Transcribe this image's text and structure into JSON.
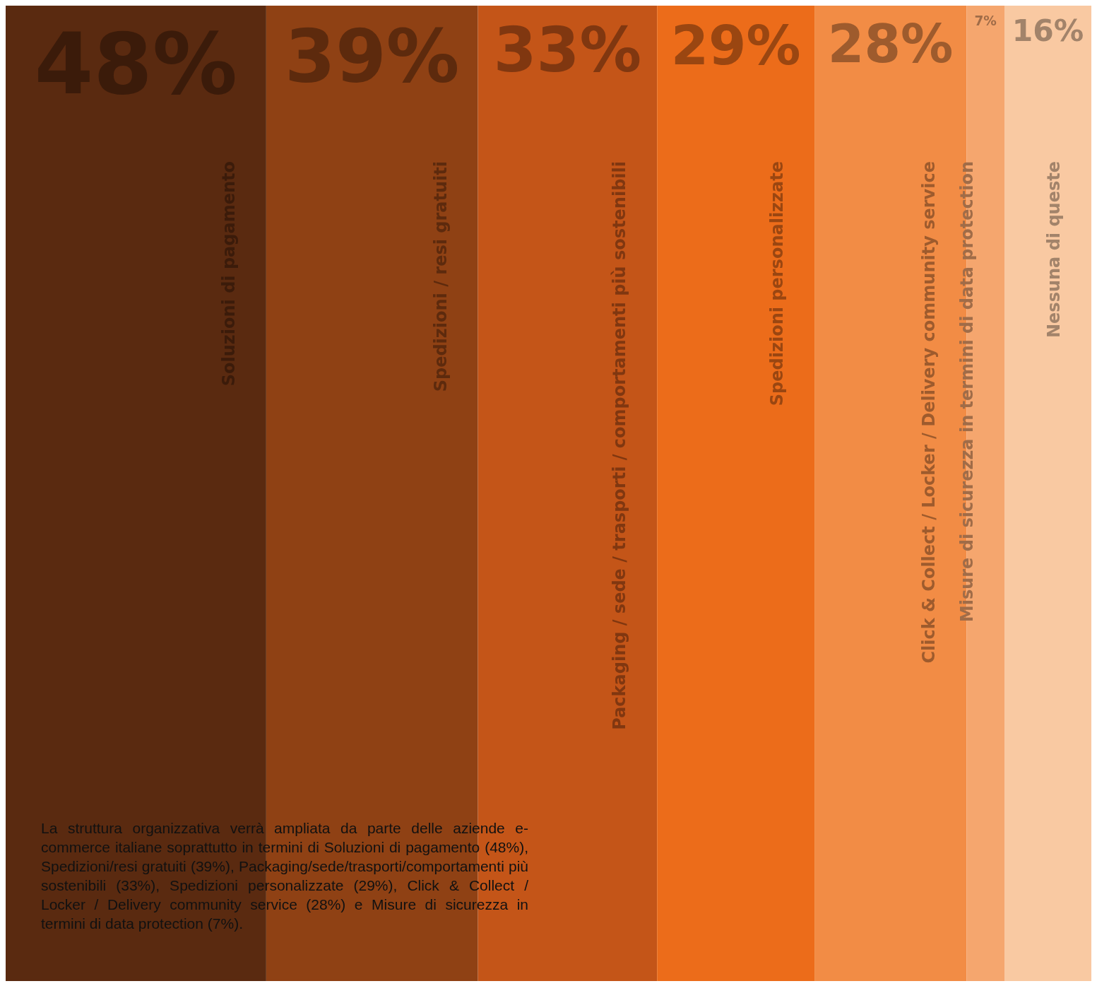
{
  "chart_data": {
    "type": "other",
    "categories": [
      "Soluzioni di pagamento",
      "Spedizioni / resi gratuiti",
      "Packaging / sede / trasporti / comportamenti più sostenibili",
      "Spedizioni personalizzate",
      "Click & Collect / Locker / Delivery community service",
      "Misure di sicurezza in termini di data protection",
      "Nessuna di queste"
    ],
    "values": [
      48,
      39,
      33,
      29,
      28,
      7,
      16
    ],
    "value_labels": [
      "48%",
      "39%",
      "33%",
      "29%",
      "28%",
      "7%",
      "16%"
    ],
    "colors": [
      "#5a2a10",
      "#8f4114",
      "#c45518",
      "#ec6c1a",
      "#f28c45",
      "#f5a66e",
      "#f9c9a2"
    ],
    "annotations": [
      "La struttura organizzativa verrà ampliata da parte delle aziende e-commerce italiane soprattutto in termini di Soluzioni di pagamento (48%), Spedizioni/resi gratuiti (39%), Packaging/sede/trasporti/comportamenti più sostenibili (33%), Spedizioni personalizzate (29%), Click & Collect / Locker / Delivery community service (28%) e Misure di sicurezza in termini di data protection (7%)."
    ]
  }
}
